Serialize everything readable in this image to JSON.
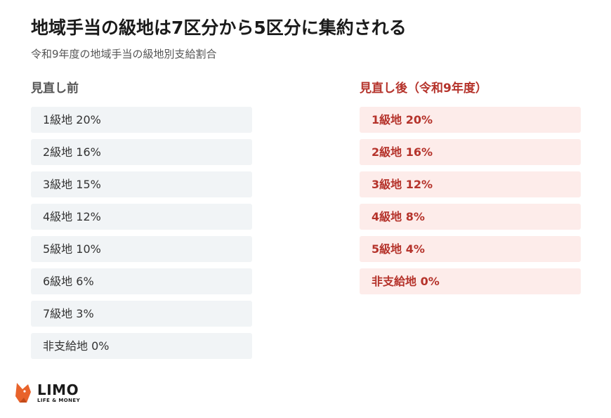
{
  "header": {
    "title": "地域手当の級地は7区分から5区分に集約される",
    "subtitle": "令和9年度の地域手当の級地別支給割合"
  },
  "before": {
    "heading": "見直し前",
    "items": [
      {
        "label": "1級地 20%"
      },
      {
        "label": "2級地 16%"
      },
      {
        "label": "3級地 15%"
      },
      {
        "label": "4級地 12%"
      },
      {
        "label": "5級地 10%"
      },
      {
        "label": "6級地 6%"
      },
      {
        "label": "7級地 3%"
      },
      {
        "label": "非支給地 0%"
      }
    ]
  },
  "after": {
    "heading": "見直し後（令和9年度）",
    "items": [
      {
        "label": "1級地 20%"
      },
      {
        "label": "2級地 16%"
      },
      {
        "label": "3級地 12%"
      },
      {
        "label": "4級地 8%"
      },
      {
        "label": "5級地 4%"
      },
      {
        "label": "非支給地 0%"
      }
    ]
  },
  "logo": {
    "name": "LIMO",
    "tagline": "LIFE & MONEY"
  },
  "colors": {
    "accent": "#b5332b",
    "after_row_bg": "#fdecea",
    "before_row_bg": "#f1f4f6",
    "logo_mark": "#e8632b"
  }
}
